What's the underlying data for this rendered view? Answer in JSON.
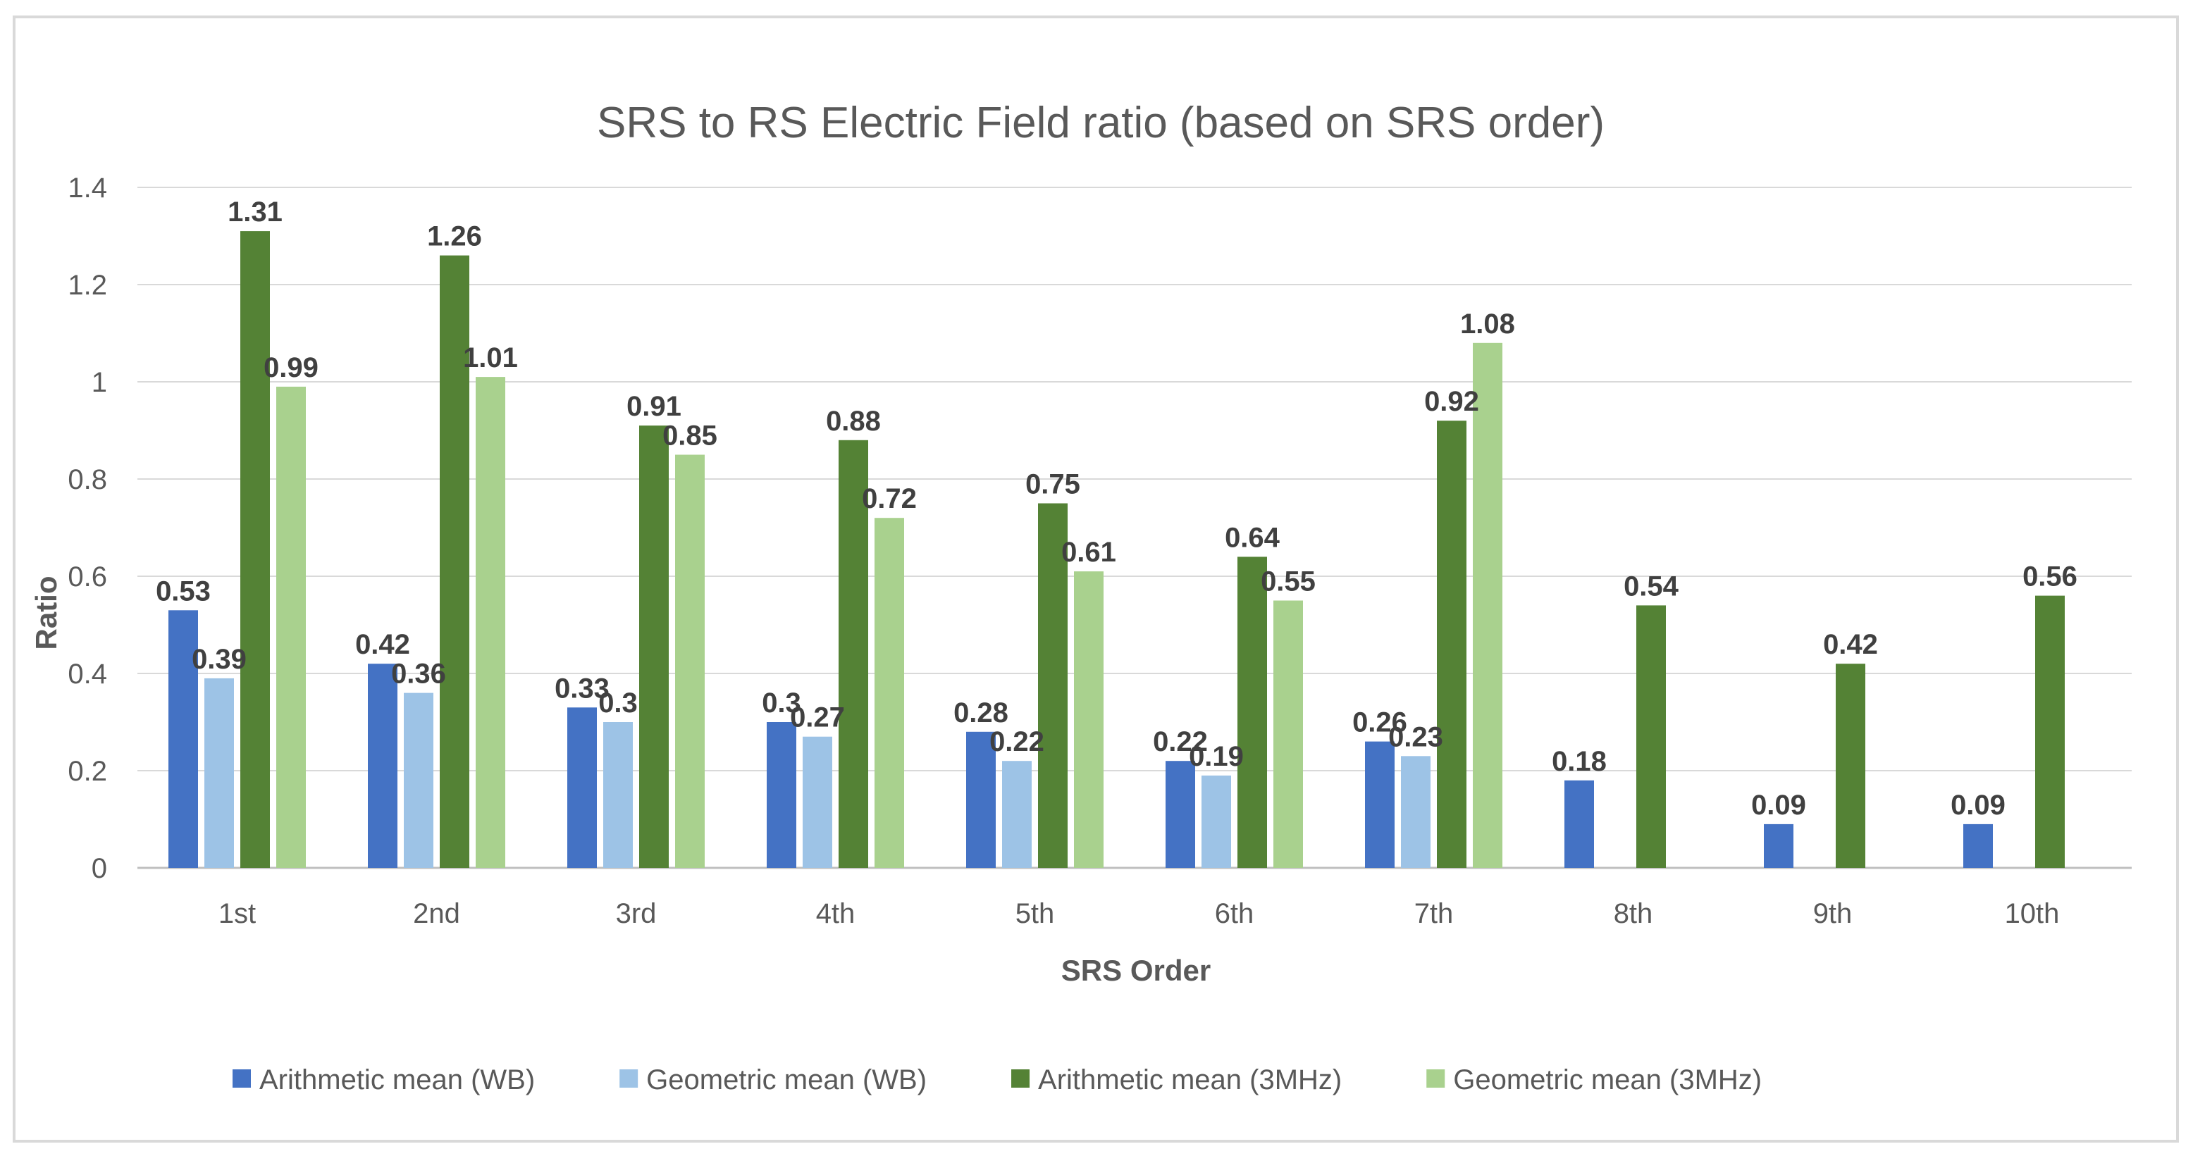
{
  "chart_data": {
    "type": "bar",
    "title": "SRS to RS Electric Field ratio (based on SRS order)",
    "xlabel": "SRS Order",
    "ylabel": "Ratio",
    "ylim": [
      0,
      1.4
    ],
    "yticks": [
      "0",
      "0.2",
      "0.4",
      "0.6",
      "0.8",
      "1",
      "1.2",
      "1.4"
    ],
    "grid": true,
    "legend_position": "bottom",
    "categories": [
      "1st",
      "2nd",
      "3rd",
      "4th",
      "5th",
      "6th",
      "7th",
      "8th",
      "9th",
      "10th"
    ],
    "series": [
      {
        "name": "Arithmetic mean (WB)",
        "color": "#4472c4",
        "values": [
          0.53,
          0.42,
          0.33,
          0.3,
          0.28,
          0.22,
          0.26,
          0.18,
          0.09,
          0.09
        ]
      },
      {
        "name": "Geometric mean (WB)",
        "color": "#9dc3e6",
        "values": [
          0.39,
          0.36,
          0.3,
          0.27,
          0.22,
          0.19,
          0.23,
          null,
          null,
          null
        ]
      },
      {
        "name": "Arithmetic mean (3MHz)",
        "color": "#548235",
        "values": [
          1.31,
          1.26,
          0.91,
          0.88,
          0.75,
          0.64,
          0.92,
          0.54,
          0.42,
          0.56
        ]
      },
      {
        "name": "Geometric mean (3MHz)",
        "color": "#a9d18e",
        "values": [
          0.99,
          1.01,
          0.85,
          0.72,
          0.61,
          0.55,
          1.08,
          null,
          null,
          null
        ]
      }
    ]
  }
}
